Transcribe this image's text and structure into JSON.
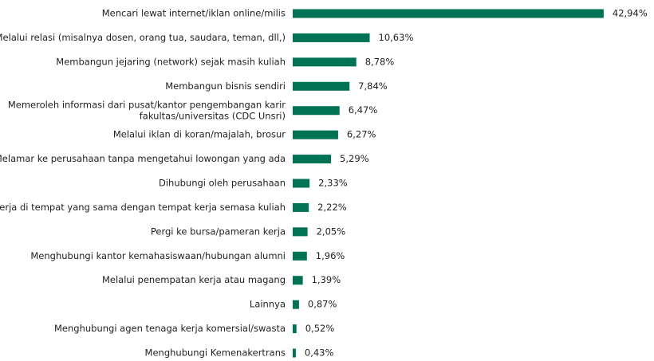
{
  "chart_data": {
    "type": "hbar",
    "categories": [
      "Mencari lewat internet/iklan online/milis",
      "Melalui relasi (misalnya dosen, orang tua, saudara, teman, dll,)",
      "Membangun jejaring (network) sejak masih kuliah",
      "Membangun bisnis sendiri",
      "Memeroleh informasi dari pusat/kantor pengembangan karir\nfakultas/universitas (CDC Unsri)",
      "Melalui iklan di koran/majalah, brosur",
      "Melamar ke perusahaan tanpa mengetahui lowongan yang ada",
      "Dihubungi oleh perusahaan",
      "Bekerja di tempat yang sama dengan tempat kerja semasa kuliah",
      "Pergi ke bursa/pameran kerja",
      "Menghubungi kantor kemahasiswaan/hubungan alumni",
      "Melalui penempatan kerja atau magang",
      "Lainnya",
      "Menghubungi agen tenaga kerja komersial/swasta",
      "Menghubungi Kemenakertrans"
    ],
    "values": [
      42.94,
      10.63,
      8.78,
      7.84,
      6.47,
      6.27,
      5.29,
      2.33,
      2.22,
      2.05,
      1.96,
      1.39,
      0.87,
      0.52,
      0.43
    ],
    "value_labels": [
      "42,94%",
      "10,63%",
      "8,78%",
      "7,84%",
      "6,47%",
      "6,27%",
      "5,29%",
      "2,33%",
      "2,22%",
      "2,05%",
      "1,96%",
      "1,39%",
      "0,87%",
      "0,52%",
      "0,43%"
    ],
    "color": "#007355"
  }
}
